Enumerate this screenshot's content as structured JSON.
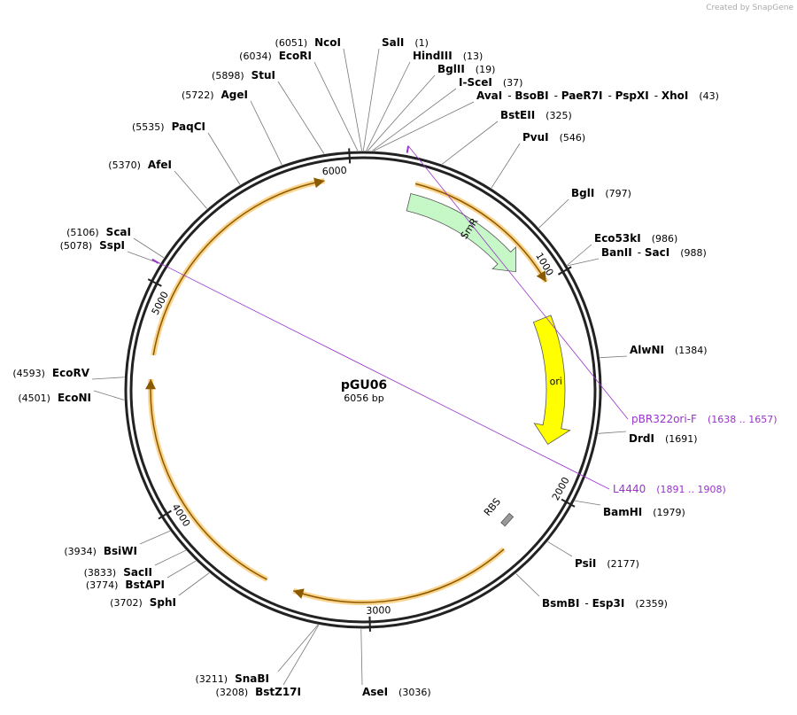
{
  "header": {
    "credit": "Created by SnapGene"
  },
  "plasmid": {
    "name": "pGU06",
    "length": "6056 bp"
  },
  "features": {
    "smr": "SmR",
    "ori": "ori",
    "rbs": "RBS"
  },
  "ticks": [
    1000,
    2000,
    3000,
    4000,
    5000,
    6000
  ],
  "sites": [
    {
      "names": [
        "NcoI"
      ],
      "position": "(6051)"
    },
    {
      "names": [
        "EcoRI"
      ],
      "position": "(6034)"
    },
    {
      "names": [
        "StuI"
      ],
      "position": "(5898)"
    },
    {
      "names": [
        "AgeI"
      ],
      "position": "(5722)"
    },
    {
      "names": [
        "PaqCI"
      ],
      "position": "(5535)"
    },
    {
      "names": [
        "AfeI"
      ],
      "position": "(5370)"
    },
    {
      "names": [
        "ScaI"
      ],
      "position": "(5106)"
    },
    {
      "names": [
        "SspI"
      ],
      "position": "(5078)"
    },
    {
      "names": [
        "EcoRV"
      ],
      "position": "(4593)"
    },
    {
      "names": [
        "EcoNI"
      ],
      "position": "(4501)"
    },
    {
      "names": [
        "BsiWI"
      ],
      "position": "(3934)"
    },
    {
      "names": [
        "SacII"
      ],
      "position": "(3833)"
    },
    {
      "names": [
        "BstAPI"
      ],
      "position": "(3774)"
    },
    {
      "names": [
        "SphI"
      ],
      "position": "(3702)"
    },
    {
      "names": [
        "SnaBI"
      ],
      "position": "(3211)"
    },
    {
      "names": [
        "BstZ17I"
      ],
      "position": "(3208)"
    },
    {
      "names": [
        "SalI"
      ],
      "position": "(1)"
    },
    {
      "names": [
        "HindIII"
      ],
      "position": "(13)"
    },
    {
      "names": [
        "BglII"
      ],
      "position": "(19)"
    },
    {
      "names": [
        "I-SceI"
      ],
      "position": "(37)"
    },
    {
      "names": [
        "AvaI",
        "BsoBI",
        "PaeR7I",
        "PspXI",
        "XhoI"
      ],
      "position": "(43)"
    },
    {
      "names": [
        "BstEII"
      ],
      "position": "(325)"
    },
    {
      "names": [
        "PvuI"
      ],
      "position": "(546)"
    },
    {
      "names": [
        "BglI"
      ],
      "position": "(797)"
    },
    {
      "names": [
        "Eco53kI"
      ],
      "position": "(986)"
    },
    {
      "names": [
        "BanII",
        "SacI"
      ],
      "position": "(988)"
    },
    {
      "names": [
        "AlwNI"
      ],
      "position": "(1384)"
    },
    {
      "names": [
        "DrdI"
      ],
      "position": "(1691)"
    },
    {
      "names": [
        "BamHI"
      ],
      "position": "(1979)"
    },
    {
      "names": [
        "PsiI"
      ],
      "position": "(2177)"
    },
    {
      "names": [
        "BsmBI",
        "Esp3I"
      ],
      "position": "(2359)"
    },
    {
      "names": [
        "AseI"
      ],
      "position": "(3036)"
    }
  ],
  "primers": [
    {
      "name": "pBR322ori-F",
      "position": "(1638 .. 1657)"
    },
    {
      "name": "L4440",
      "position": "(1891 .. 1908)"
    }
  ]
}
